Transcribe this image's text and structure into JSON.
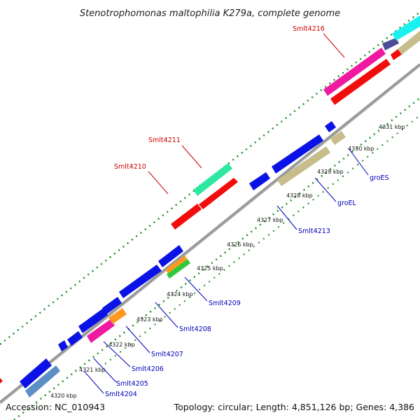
{
  "title": "Stenotrophomonas maltophilia K279a, complete genome",
  "footer": {
    "accession": "Accession: NC_010943",
    "topology": "Topology: circular; Length: 4,851,126 bp; Genes: 4,386"
  },
  "ticks": [
    "4320 kbp",
    "4321 kbp",
    "4322 kbp",
    "4323 kbp",
    "4324 kbp",
    "4325 kbp",
    "4326 kbp",
    "4327 kbp",
    "4328 kbp",
    "4329 kbp",
    "4330 kbp",
    "4331 kbp"
  ],
  "colors": {
    "blue": "#0b12e6",
    "red": "#f20d0d",
    "pink": "#ef1aa0",
    "khaki": "#c6bd8b",
    "steel": "#5b8fc5",
    "orange": "#ff9922",
    "green": "#2fc83a",
    "mint": "#2ee8a2",
    "cyan": "#19f0f0",
    "slate": "#4b4d96",
    "backbone": "#9a9a9a",
    "dots": "#1f8f1f",
    "label_red": "#cc0000",
    "label_blue": "#0000bb"
  },
  "labels": {
    "top": [
      "Smlt4216",
      "Smlt4211",
      "Smlt4210"
    ],
    "bottom": [
      "groES",
      "groEL",
      "Smlt4213",
      "Smlt4209",
      "Smlt4208",
      "Smlt4207",
      "Smlt4206",
      "Smlt4205",
      "Smlt4204"
    ]
  }
}
